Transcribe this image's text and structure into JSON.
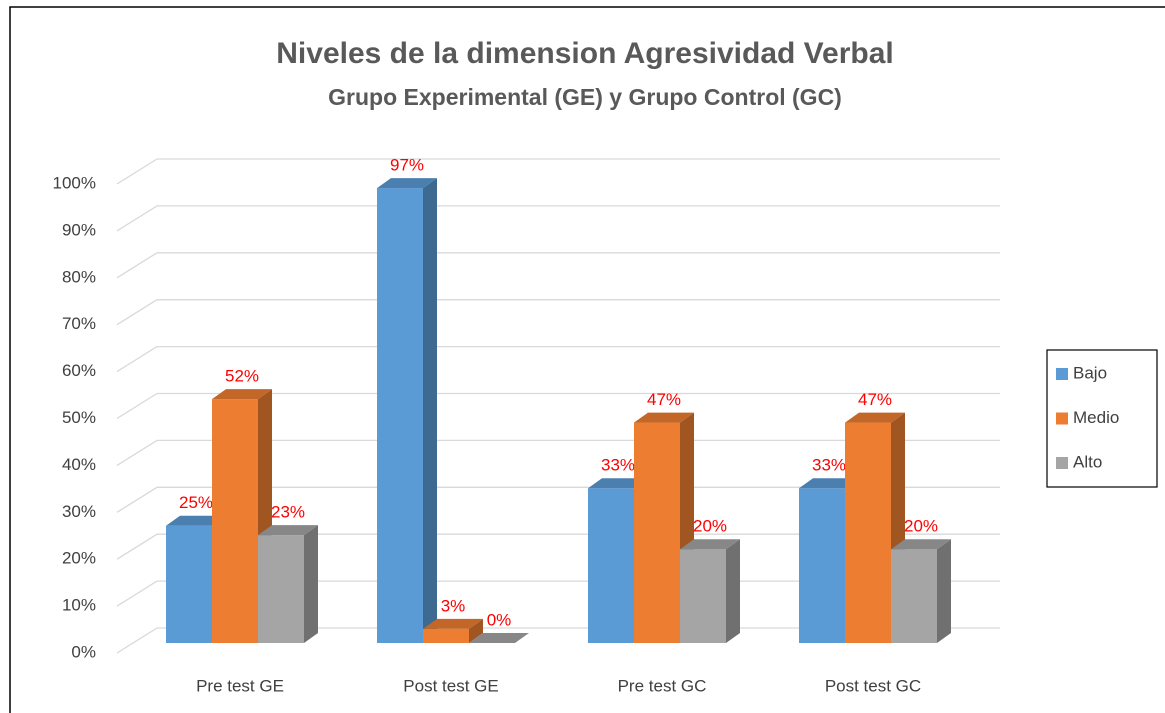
{
  "chart_data": {
    "type": "bar3d",
    "title": "Niveles de la dimension Agresividad Verbal",
    "subtitle": "Grupo Experimental (GE) y Grupo Control (GC)",
    "categories": [
      "Pre test GE",
      "Post test GE",
      "Pre test GC",
      "Post test GC"
    ],
    "series": [
      {
        "name": "Bajo",
        "color": "#5b9bd5",
        "values": [
          25,
          97,
          33,
          33
        ],
        "value_labels": [
          "25%",
          "97%",
          "33%",
          "33%"
        ]
      },
      {
        "name": "Medio",
        "color": "#ed7d31",
        "values": [
          52,
          3,
          47,
          47
        ],
        "value_labels": [
          "52%",
          "3%",
          "47%",
          "47%"
        ]
      },
      {
        "name": "Alto",
        "color": "#a5a5a5",
        "values": [
          23,
          0,
          20,
          20
        ],
        "value_labels": [
          "23%",
          "0%",
          "20%",
          "20%"
        ]
      }
    ],
    "ylim": [
      0,
      100
    ],
    "yticks": [
      {
        "value": 0,
        "label": "0%"
      },
      {
        "value": 10,
        "label": "10%"
      },
      {
        "value": 20,
        "label": "20%"
      },
      {
        "value": 30,
        "label": "30%"
      },
      {
        "value": 40,
        "label": "40%"
      },
      {
        "value": 50,
        "label": "50%"
      },
      {
        "value": 60,
        "label": "60%"
      },
      {
        "value": 70,
        "label": "70%"
      },
      {
        "value": 80,
        "label": "80%"
      },
      {
        "value": 90,
        "label": "90%"
      },
      {
        "value": 100,
        "label": "100%"
      }
    ],
    "grid": true,
    "legend": "right"
  }
}
